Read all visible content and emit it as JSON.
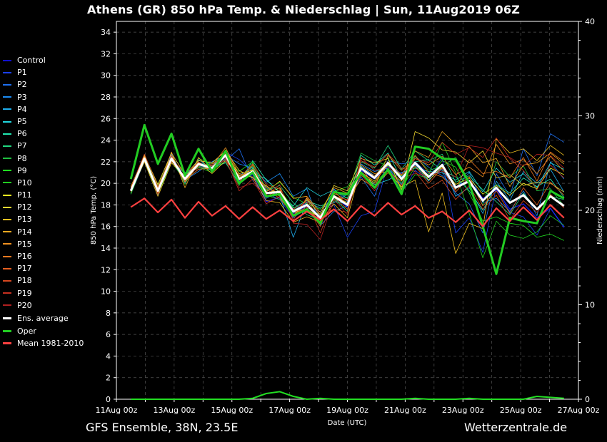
{
  "title": "Athens  (GR)  850 hPa Temp. & Niederschlag | Sun, 11Aug2019 06Z",
  "footer": {
    "left": "GFS Ensemble, 38N, 23.5E",
    "right": "Wetterzentrale.de"
  },
  "chart_data": {
    "type": "line",
    "xlabel": "Date (UTC)",
    "ylabel": "850 hPa Temp. (°C)",
    "y2label": "Niederschlag (mm)",
    "ylim": [
      0,
      35
    ],
    "y2lim": [
      0,
      40
    ],
    "yticks": [
      0,
      2,
      4,
      6,
      8,
      10,
      12,
      14,
      16,
      18,
      20,
      22,
      24,
      26,
      28,
      30,
      32,
      34
    ],
    "y2ticks": [
      0,
      10,
      20,
      30,
      40
    ],
    "xticks": [
      "11Aug 00z",
      "13Aug 00z",
      "15Aug 00z",
      "17Aug 00z",
      "19Aug 00z",
      "21Aug 00z",
      "23Aug 00z",
      "25Aug 00z",
      "27Aug 00z"
    ],
    "x_start_day": 11,
    "x_end_day": 27,
    "grid": true,
    "legend_position": "left",
    "series": [
      {
        "name": "Control",
        "color": "#1010d0",
        "values": [
          19.3,
          22.4,
          19.1,
          22.2,
          20.5,
          21.8,
          21.5,
          22.4,
          20.2,
          20.8,
          18.3,
          18.7,
          17.2,
          17.9,
          17.0,
          18.8,
          17.8,
          21.2,
          20.4,
          21.6,
          20.9,
          21.8,
          20.6,
          21.3,
          19.7,
          20.3,
          18.6,
          19.4,
          17.6,
          18.1,
          16.8,
          17.7,
          15.9
        ]
      },
      {
        "name": "P1",
        "color": "#1a40f0",
        "values": [
          19.0,
          22.0,
          19.3,
          22.6,
          20.0,
          22.0,
          21.1,
          22.9,
          22.2,
          21.1,
          19.1,
          18.5,
          16.8,
          17.7,
          17.4,
          18.0,
          15.0,
          17.0,
          17.4,
          21.8,
          19.1,
          21.2,
          20.3,
          22.4,
          15.4,
          16.8,
          13.6,
          19.7,
          17.3,
          16.9,
          15.2,
          17.7,
          16.0
        ]
      },
      {
        "name": "P2",
        "color": "#1e6ff0",
        "values": [
          19.5,
          22.6,
          18.9,
          22.1,
          21.0,
          21.5,
          21.7,
          22.1,
          23.2,
          20.3,
          18.6,
          19.3,
          17.5,
          18.2,
          16.7,
          19.5,
          18.3,
          20.6,
          18.8,
          22.1,
          21.8,
          22.0,
          20.9,
          21.0,
          19.1,
          18.1,
          15.4,
          20.9,
          18.8,
          23.2,
          20.7,
          24.6,
          23.8
        ]
      },
      {
        "name": "P3",
        "color": "#1b8cf5",
        "values": [
          19.4,
          22.1,
          19.6,
          22.7,
          20.3,
          21.1,
          22.0,
          22.6,
          21.8,
          21.4,
          20.1,
          20.9,
          18.8,
          19.5,
          16.1,
          17.4,
          17.9,
          21.8,
          21.1,
          21.4,
          19.9,
          22.5,
          21.5,
          20.7,
          19.5,
          21.0,
          18.2,
          18.6,
          17.4,
          19.3,
          17.0,
          22.0,
          20.4
        ]
      },
      {
        "name": "P4",
        "color": "#1fb0f0",
        "values": [
          19.2,
          22.3,
          19.2,
          22.0,
          20.6,
          22.2,
          21.3,
          22.2,
          20.7,
          21.5,
          19.6,
          18.9,
          15.0,
          18.3,
          17.7,
          18.2,
          19.0,
          21.6,
          20.7,
          21.9,
          20.6,
          21.7,
          20.2,
          21.8,
          18.8,
          19.6,
          17.2,
          20.2,
          18.4,
          21.1,
          20.0,
          21.3,
          19.2
        ]
      },
      {
        "name": "P5",
        "color": "#20d8e0",
        "values": [
          19.6,
          22.5,
          19.7,
          22.4,
          20.1,
          21.9,
          21.6,
          22.8,
          20.5,
          21.0,
          20.4,
          19.1,
          17.9,
          19.6,
          18.8,
          19.4,
          18.6,
          20.9,
          19.9,
          20.3,
          21.0,
          21.4,
          21.1,
          21.0,
          20.3,
          21.1,
          19.2,
          21.4,
          20.1,
          20.9,
          19.6,
          21.9,
          21.3
        ]
      },
      {
        "name": "P6",
        "color": "#20e8b0",
        "values": [
          19.1,
          22.2,
          19.4,
          22.1,
          20.9,
          21.4,
          21.4,
          21.9,
          20.0,
          22.1,
          20.3,
          19.2,
          17.7,
          18.4,
          17.9,
          18.3,
          18.1,
          22.6,
          21.7,
          22.8,
          20.4,
          22.0,
          22.2,
          21.2,
          20.6,
          19.3,
          17.5,
          19.9,
          19.1,
          20.5,
          19.7,
          20.4,
          18.7
        ]
      },
      {
        "name": "P7",
        "color": "#20d880",
        "values": [
          19.2,
          22.0,
          19.3,
          22.3,
          20.4,
          21.6,
          21.2,
          22.5,
          20.3,
          21.4,
          19.3,
          19.8,
          18.2,
          17.1,
          16.6,
          18.6,
          17.4,
          22.0,
          21.4,
          23.5,
          21.3,
          23.0,
          22.1,
          22.7,
          20.1,
          20.7,
          19.4,
          18.3,
          17.1,
          19.1,
          17.6,
          18.8,
          18.5
        ]
      },
      {
        "name": "P8",
        "color": "#20c040",
        "values": [
          19.3,
          22.3,
          19.5,
          22.0,
          20.2,
          21.7,
          21.3,
          22.0,
          19.8,
          21.9,
          18.9,
          18.5,
          17.4,
          18.0,
          16.2,
          19.0,
          18.9,
          22.8,
          22.1,
          21.6,
          20.0,
          22.5,
          21.2,
          21.6,
          22.4,
          20.2,
          18.0,
          22.0,
          20.6,
          21.6,
          19.3,
          19.5,
          17.9
        ]
      },
      {
        "name": "P9",
        "color": "#20e020",
        "values": [
          19.0,
          22.1,
          19.0,
          21.9,
          20.7,
          21.5,
          21.0,
          22.3,
          21.1,
          22.0,
          19.4,
          20.1,
          18.7,
          18.1,
          17.6,
          19.2,
          19.7,
          21.4,
          20.6,
          22.4,
          19.2,
          20.8,
          20.5,
          22.1,
          21.5,
          19.1,
          16.5,
          16.9,
          16.3,
          16.1,
          15.0,
          15.3,
          14.7
        ]
      },
      {
        "name": "P10",
        "color": "#22cc22",
        "values": [
          19.1,
          22.4,
          19.8,
          22.5,
          19.9,
          22.3,
          21.8,
          22.7,
          20.4,
          21.6,
          18.7,
          19.3,
          17.8,
          17.3,
          17.2,
          18.4,
          18.7,
          20.7,
          20.1,
          21.2,
          19.6,
          21.5,
          20.8,
          23.8,
          21.0,
          17.2,
          13.1,
          16.5,
          15.2,
          14.9,
          15.5,
          17.0,
          16.1
        ]
      },
      {
        "name": "P11",
        "color": "#f0f020",
        "values": [
          19.5,
          22.1,
          19.2,
          22.1,
          20.4,
          21.8,
          21.5,
          22.6,
          20.9,
          21.2,
          19.0,
          19.6,
          17.3,
          17.6,
          16.8,
          18.9,
          18.2,
          21.0,
          20.2,
          21.7,
          20.7,
          21.9,
          20.3,
          21.5,
          19.9,
          20.5,
          19.0,
          19.8,
          18.9,
          20.0,
          19.5,
          21.4,
          20.8
        ]
      },
      {
        "name": "P12",
        "color": "#f0d830",
        "values": [
          19.7,
          22.6,
          19.9,
          22.8,
          20.8,
          22.1,
          21.9,
          23.0,
          21.2,
          20.5,
          19.8,
          18.8,
          16.9,
          18.6,
          17.0,
          19.8,
          19.3,
          22.3,
          21.9,
          22.3,
          19.4,
          24.8,
          24.2,
          23.1,
          22.9,
          21.9,
          23.0,
          20.5,
          20.8,
          19.8,
          20.1,
          20.0,
          19.2
        ]
      },
      {
        "name": "P13",
        "color": "#f0c020",
        "values": [
          19.2,
          22.0,
          18.8,
          21.9,
          20.6,
          22.0,
          20.9,
          22.1,
          20.7,
          20.6,
          18.4,
          18.2,
          16.4,
          16.9,
          16.4,
          18.1,
          16.8,
          21.5,
          19.7,
          21.0,
          19.7,
          20.3,
          15.5,
          19.1,
          13.5,
          16.3,
          15.8,
          24.1,
          22.8,
          23.2,
          22.1,
          23.5,
          22.6
        ]
      },
      {
        "name": "P14",
        "color": "#f0a820",
        "values": [
          19.4,
          22.5,
          19.3,
          22.9,
          19.6,
          22.4,
          21.1,
          23.1,
          20.6,
          21.3,
          19.2,
          20.2,
          18.6,
          18.8,
          17.3,
          19.6,
          19.1,
          21.7,
          20.9,
          21.1,
          20.2,
          23.0,
          22.4,
          24.8,
          23.6,
          23.4,
          21.9,
          22.3,
          19.7,
          21.7,
          21.9,
          22.8,
          21.8
        ]
      },
      {
        "name": "P15",
        "color": "#f09020",
        "values": [
          19.6,
          22.3,
          19.6,
          22.4,
          20.1,
          21.7,
          21.6,
          23.3,
          20.8,
          20.9,
          19.7,
          19.0,
          17.6,
          17.4,
          16.9,
          19.1,
          18.4,
          20.4,
          19.6,
          22.6,
          21.2,
          22.3,
          21.7,
          22.5,
          20.8,
          21.5,
          20.6,
          23.6,
          21.8,
          22.2,
          20.9,
          22.5,
          21.1
        ]
      },
      {
        "name": "P16",
        "color": "#f07820",
        "values": [
          19.3,
          22.2,
          19.1,
          22.6,
          20.3,
          21.3,
          21.4,
          22.9,
          20.1,
          21.7,
          18.8,
          19.4,
          17.0,
          18.5,
          16.5,
          18.7,
          17.6,
          21.1,
          20.0,
          21.9,
          20.8,
          22.6,
          21.0,
          20.6,
          19.4,
          22.2,
          20.9,
          21.1,
          20.5,
          22.4,
          20.2,
          22.9,
          22.0
        ]
      },
      {
        "name": "P17",
        "color": "#e86020",
        "values": [
          19.4,
          22.4,
          19.4,
          22.2,
          20.5,
          21.6,
          21.8,
          22.4,
          20.0,
          21.0,
          19.5,
          18.6,
          17.1,
          17.8,
          16.0,
          19.3,
          18.0,
          21.3,
          20.7,
          22.0,
          20.3,
          21.6,
          20.0,
          21.4,
          19.2,
          20.6,
          17.9,
          19.3,
          17.2,
          19.6,
          18.0,
          20.1,
          18.9
        ]
      },
      {
        "name": "P18",
        "color": "#d84820",
        "values": [
          19.6,
          22.7,
          19.7,
          22.5,
          20.2,
          22.0,
          21.2,
          22.8,
          20.5,
          21.8,
          19.9,
          19.5,
          16.6,
          18.7,
          17.1,
          17.6,
          17.3,
          22.1,
          21.5,
          22.7,
          21.4,
          21.1,
          19.5,
          20.3,
          18.5,
          19.8,
          17.6,
          18.9,
          16.6,
          18.4,
          17.3,
          19.0,
          17.7
        ]
      },
      {
        "name": "P19",
        "color": "#c83020",
        "values": [
          19.2,
          22.3,
          19.0,
          22.3,
          20.9,
          21.9,
          21.3,
          22.3,
          19.3,
          20.4,
          18.1,
          18.8,
          17.6,
          18.3,
          15.4,
          18.8,
          18.5,
          20.8,
          19.3,
          21.3,
          19.8,
          22.3,
          21.9,
          23.8,
          22.7,
          23.3,
          22.4,
          24.2,
          22.3,
          21.2,
          19.4,
          21.7,
          20.5
        ]
      },
      {
        "name": "P20",
        "color": "#b02020",
        "values": [
          19.5,
          22.1,
          19.5,
          22.0,
          20.7,
          21.4,
          21.7,
          22.1,
          19.6,
          20.0,
          18.9,
          19.9,
          16.3,
          16.2,
          14.8,
          18.5,
          17.1,
          22.4,
          21.2,
          21.5,
          20.5,
          20.9,
          20.7,
          21.1,
          20.6,
          23.5,
          23.3,
          22.8,
          22.4,
          21.6,
          22.7,
          22.6,
          21.4
        ]
      },
      {
        "name": "Ens. average",
        "color": "#ffffff",
        "values": [
          19.3,
          22.3,
          19.3,
          22.3,
          20.4,
          21.8,
          21.4,
          22.6,
          20.4,
          21.1,
          19.1,
          19.2,
          17.4,
          18.0,
          16.8,
          18.8,
          18.0,
          21.4,
          20.5,
          21.9,
          20.4,
          21.9,
          20.6,
          21.7,
          19.6,
          20.2,
          18.4,
          19.6,
          18.2,
          18.9,
          17.6,
          18.8,
          17.9
        ]
      },
      {
        "name": "Oper",
        "color": "#22cc22",
        "values": [
          20.4,
          25.4,
          21.8,
          24.6,
          20.7,
          23.2,
          21.1,
          23.0,
          20.0,
          21.0,
          18.8,
          19.0,
          17.0,
          17.6,
          16.3,
          19.2,
          19.0,
          21.0,
          19.6,
          21.3,
          19.0,
          23.4,
          23.2,
          22.3,
          22.2,
          20.0,
          16.0,
          11.6,
          16.8,
          16.5,
          16.3,
          19.3,
          18.6
        ]
      },
      {
        "name": "Mean 1981-2010",
        "color": "#ff4040",
        "values": [
          17.8,
          18.6,
          17.3,
          18.5,
          16.8,
          18.3,
          17.0,
          17.9,
          16.7,
          17.8,
          16.7,
          17.5,
          16.5,
          17.4,
          16.6,
          17.6,
          16.5,
          17.9,
          17.0,
          18.2,
          17.1,
          17.9,
          16.8,
          17.4,
          16.4,
          17.5,
          16.0,
          17.7,
          16.5,
          17.8,
          16.6,
          18.0,
          16.8
        ]
      }
    ],
    "precip_values": [
      0,
      0,
      0,
      0,
      0,
      0,
      0,
      0,
      0,
      0.1,
      0.6,
      0.8,
      0.3,
      0,
      0.1,
      0,
      0,
      0,
      0,
      0,
      0,
      0.1,
      0,
      0,
      0,
      0.1,
      0,
      0,
      0,
      0,
      0.3,
      0.2,
      0.1
    ]
  }
}
